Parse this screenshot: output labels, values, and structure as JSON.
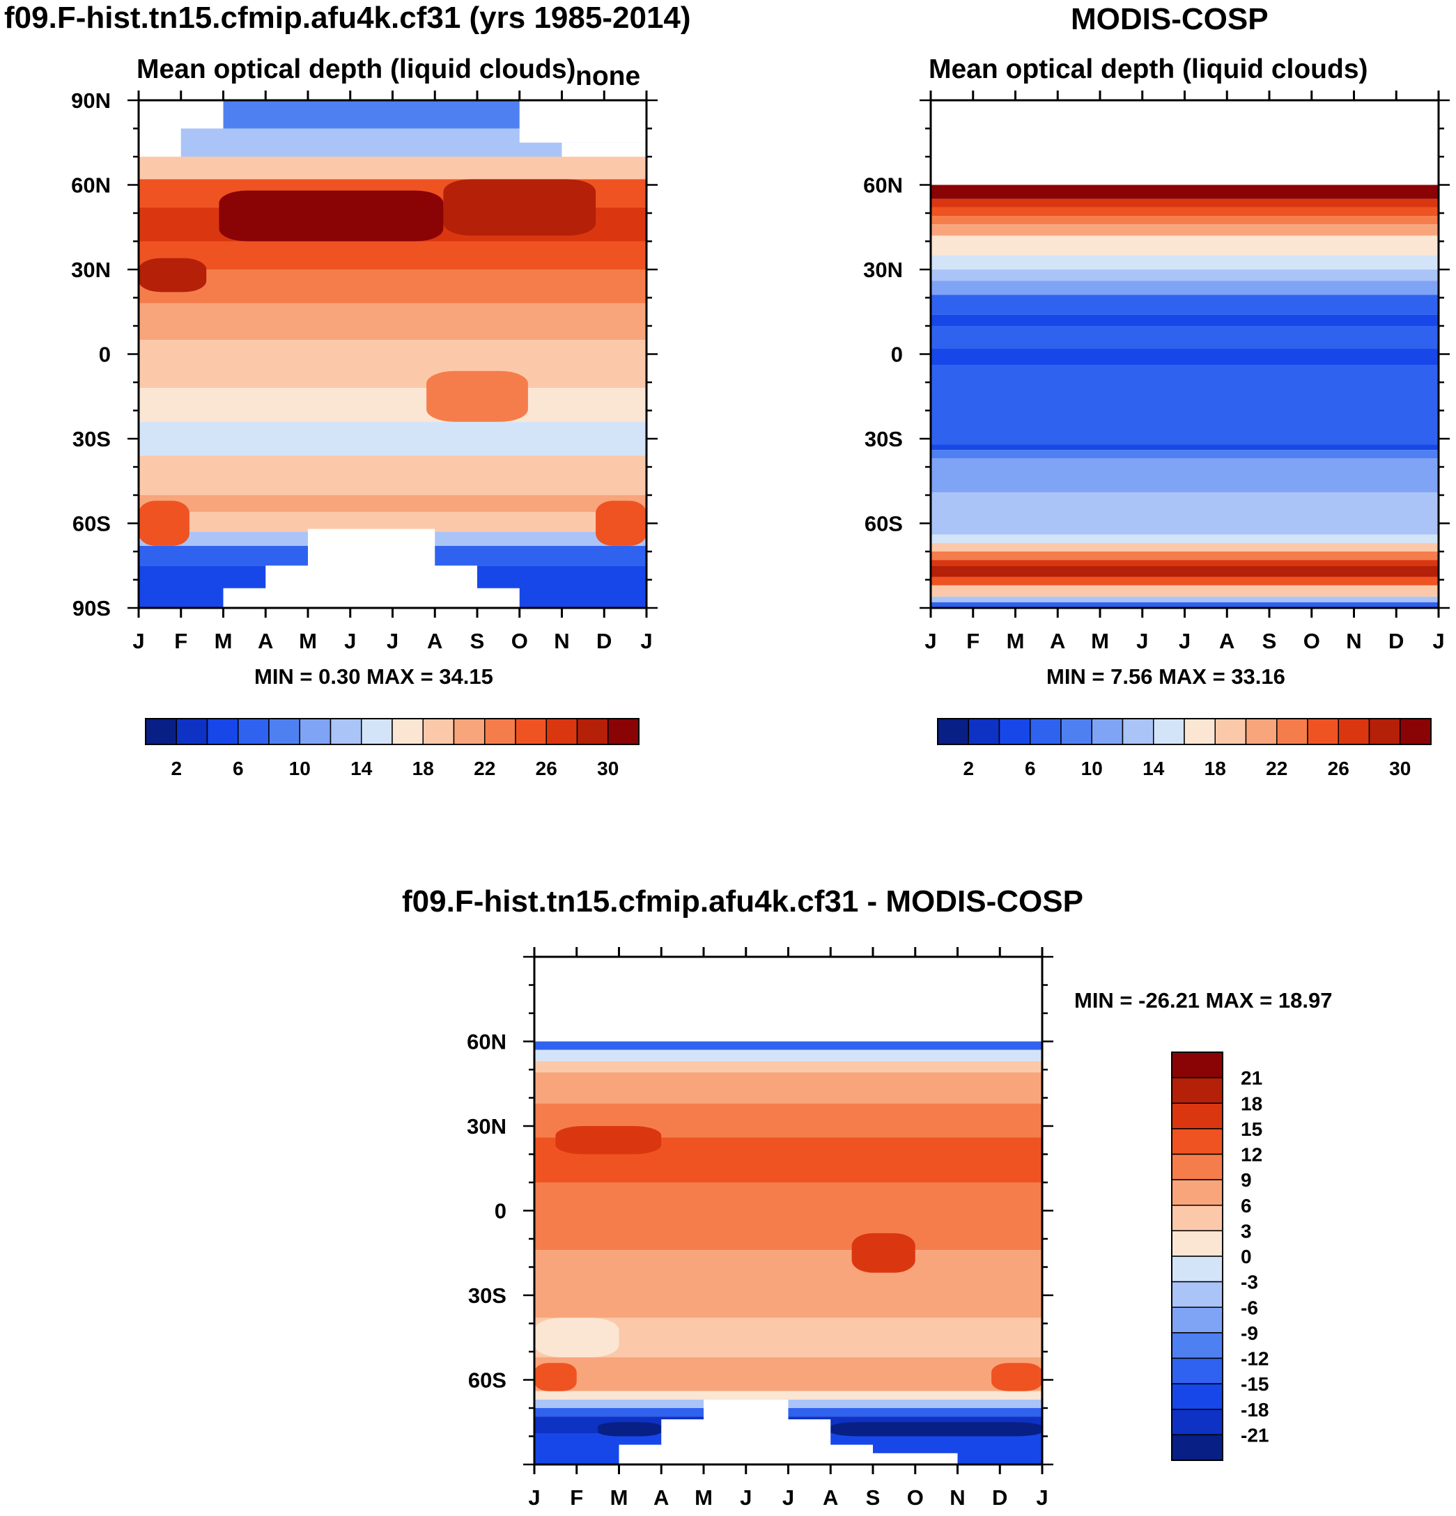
{
  "page_title_left": "f09.F-hist.tn15.cfmip.afu4k.cf31 (yrs 1985-2014)",
  "page_title_right": "MODIS-COSP",
  "diff_title": "f09.F-hist.tn15.cfmip.afu4k.cf31 - MODIS-COSP",
  "chart_data": [
    {
      "id": "model",
      "type": "heatmap",
      "title": "Mean optical depth (liquid clouds)",
      "corner_label": "none",
      "months": [
        "J",
        "F",
        "M",
        "A",
        "M",
        "J",
        "J",
        "A",
        "S",
        "O",
        "N",
        "D",
        "J"
      ],
      "yticks": [
        "90N",
        "60N",
        "30N",
        "0",
        "30S",
        "60S",
        "90S"
      ],
      "ylim": [
        -90,
        90
      ],
      "stats": "MIN =   0.30 MAX =  34.15",
      "colorbar_labels": [
        "2",
        "6",
        "10",
        "14",
        "18",
        "22",
        "26",
        "30"
      ],
      "colorbar_colors": [
        "#081f86",
        "#0d32c4",
        "#1747e8",
        "#2f62ef",
        "#4f80f2",
        "#7fa3f5",
        "#abc4f7",
        "#d3e4f9",
        "#fbe6d4",
        "#fbc9aa",
        "#f8a57c",
        "#f57d4c",
        "#ef5322",
        "#da3710",
        "#b42008",
        "#8a0405"
      ],
      "bands": [
        {
          "lat_top": 90,
          "lat_bottom": 80,
          "color": "#4f80f2"
        },
        {
          "lat_top": 80,
          "lat_bottom": 70,
          "color": "#abc4f7"
        },
        {
          "lat_top": 70,
          "lat_bottom": 62,
          "color": "#fbc9aa"
        },
        {
          "lat_top": 62,
          "lat_bottom": 52,
          "color": "#ef5322"
        },
        {
          "lat_top": 52,
          "lat_bottom": 40,
          "color": "#da3710"
        },
        {
          "lat_top": 40,
          "lat_bottom": 30,
          "color": "#ef5322"
        },
        {
          "lat_top": 30,
          "lat_bottom": 18,
          "color": "#f57d4c"
        },
        {
          "lat_top": 18,
          "lat_bottom": 5,
          "color": "#f8a57c"
        },
        {
          "lat_top": 5,
          "lat_bottom": -12,
          "color": "#fbc9aa"
        },
        {
          "lat_top": -12,
          "lat_bottom": -24,
          "color": "#fbe6d4"
        },
        {
          "lat_top": -24,
          "lat_bottom": -36,
          "color": "#d3e4f9"
        },
        {
          "lat_top": -36,
          "lat_bottom": -50,
          "color": "#fbc9aa"
        },
        {
          "lat_top": -50,
          "lat_bottom": -56,
          "color": "#f8a57c"
        },
        {
          "lat_top": -56,
          "lat_bottom": -63,
          "color": "#fbc9aa"
        },
        {
          "lat_top": -63,
          "lat_bottom": -68,
          "color": "#abc4f7"
        },
        {
          "lat_top": -68,
          "lat_bottom": -75,
          "color": "#2f62ef"
        },
        {
          "lat_top": -75,
          "lat_bottom": -90,
          "color": "#1747e8"
        }
      ],
      "patches": [
        {
          "months": [
            1.9,
            7.2
          ],
          "lat": [
            58,
            40
          ],
          "color": "#8a0405"
        },
        {
          "months": [
            7.2,
            10.8
          ],
          "lat": [
            62,
            42
          ],
          "color": "#b42008"
        },
        {
          "months": [
            0.0,
            1.6
          ],
          "lat": [
            34,
            22
          ],
          "color": "#b42008"
        },
        {
          "months": [
            6.8,
            9.2
          ],
          "lat": [
            -6,
            -24
          ],
          "color": "#f57d4c"
        },
        {
          "months": [
            0.0,
            1.2
          ],
          "lat": [
            -52,
            -68
          ],
          "color": "#ef5322"
        },
        {
          "months": [
            10.8,
            12.0
          ],
          "lat": [
            -52,
            -68
          ],
          "color": "#ef5322"
        },
        {
          "months": [
            4.0,
            7.0
          ],
          "lat": [
            -62,
            -90
          ],
          "color": "#ffffff"
        },
        {
          "months": [
            3.0,
            8.0
          ],
          "lat": [
            -75,
            -90
          ],
          "color": "#ffffff"
        },
        {
          "months": [
            2.0,
            9.0
          ],
          "lat": [
            -83,
            -90
          ],
          "color": "#ffffff"
        },
        {
          "months": [
            0.0,
            2.0
          ],
          "lat": [
            90,
            80
          ],
          "color": "#ffffff"
        },
        {
          "months": [
            9.0,
            12.0
          ],
          "lat": [
            90,
            75
          ],
          "color": "#ffffff"
        },
        {
          "months": [
            0.0,
            1.0
          ],
          "lat": [
            80,
            70
          ],
          "color": "#ffffff"
        },
        {
          "months": [
            10.0,
            12.0
          ],
          "lat": [
            75,
            70
          ],
          "color": "#ffffff"
        }
      ]
    },
    {
      "id": "obs",
      "type": "heatmap",
      "title": "Mean optical depth (liquid clouds)",
      "months": [
        "J",
        "F",
        "M",
        "A",
        "M",
        "J",
        "J",
        "A",
        "S",
        "O",
        "N",
        "D",
        "J"
      ],
      "yticks": [
        "60N",
        "30N",
        "0",
        "30S",
        "60S"
      ],
      "ylim": [
        -90,
        90
      ],
      "stats": "MIN =   7.56 MAX =  33.16",
      "colorbar_labels": [
        "2",
        "6",
        "10",
        "14",
        "18",
        "22",
        "26",
        "30"
      ],
      "colorbar_colors": [
        "#081f86",
        "#0d32c4",
        "#1747e8",
        "#2f62ef",
        "#4f80f2",
        "#7fa3f5",
        "#abc4f7",
        "#d3e4f9",
        "#fbe6d4",
        "#fbc9aa",
        "#f8a57c",
        "#f57d4c",
        "#ef5322",
        "#da3710",
        "#b42008",
        "#8a0405"
      ],
      "bands": [
        {
          "lat_top": 90,
          "lat_bottom": 60,
          "color": "#ffffff"
        },
        {
          "lat_top": 60,
          "lat_bottom": 55,
          "color": "#8a0405"
        },
        {
          "lat_top": 55,
          "lat_bottom": 52,
          "color": "#da3710"
        },
        {
          "lat_top": 52,
          "lat_bottom": 49,
          "color": "#ef5322"
        },
        {
          "lat_top": 49,
          "lat_bottom": 46,
          "color": "#f57d4c"
        },
        {
          "lat_top": 46,
          "lat_bottom": 42,
          "color": "#f8a57c"
        },
        {
          "lat_top": 42,
          "lat_bottom": 35,
          "color": "#fbe6d4"
        },
        {
          "lat_top": 35,
          "lat_bottom": 30,
          "color": "#d3e4f9"
        },
        {
          "lat_top": 30,
          "lat_bottom": 26,
          "color": "#abc4f7"
        },
        {
          "lat_top": 26,
          "lat_bottom": 21,
          "color": "#7fa3f5"
        },
        {
          "lat_top": 21,
          "lat_bottom": 14,
          "color": "#2f62ef"
        },
        {
          "lat_top": 14,
          "lat_bottom": 10,
          "color": "#1747e8"
        },
        {
          "lat_top": 10,
          "lat_bottom": 2,
          "color": "#2f62ef"
        },
        {
          "lat_top": 2,
          "lat_bottom": -4,
          "color": "#1747e8"
        },
        {
          "lat_top": -4,
          "lat_bottom": -32,
          "color": "#2f62ef"
        },
        {
          "lat_top": -32,
          "lat_bottom": -34,
          "color": "#1747e8"
        },
        {
          "lat_top": -34,
          "lat_bottom": -37,
          "color": "#4f80f2"
        },
        {
          "lat_top": -37,
          "lat_bottom": -49,
          "color": "#7fa3f5"
        },
        {
          "lat_top": -49,
          "lat_bottom": -64,
          "color": "#abc4f7"
        },
        {
          "lat_top": -64,
          "lat_bottom": -67,
          "color": "#d3e4f9"
        },
        {
          "lat_top": -67,
          "lat_bottom": -70,
          "color": "#fbc9aa"
        },
        {
          "lat_top": -70,
          "lat_bottom": -73,
          "color": "#f57d4c"
        },
        {
          "lat_top": -73,
          "lat_bottom": -75,
          "color": "#da3710"
        },
        {
          "lat_top": -75,
          "lat_bottom": -79,
          "color": "#b42008"
        },
        {
          "lat_top": -79,
          "lat_bottom": -82,
          "color": "#ef5322"
        },
        {
          "lat_top": -82,
          "lat_bottom": -86,
          "color": "#fbc9aa"
        },
        {
          "lat_top": -86,
          "lat_bottom": -88,
          "color": "#abc4f7"
        },
        {
          "lat_top": -88,
          "lat_bottom": -90,
          "color": "#2f62ef"
        }
      ],
      "patches": []
    },
    {
      "id": "diff",
      "type": "heatmap",
      "months": [
        "J",
        "F",
        "M",
        "A",
        "M",
        "J",
        "J",
        "A",
        "S",
        "O",
        "N",
        "D",
        "J"
      ],
      "yticks": [
        "60N",
        "30N",
        "0",
        "30S",
        "60S"
      ],
      "ylim": [
        -90,
        90
      ],
      "stats": "MIN = -26.21 MAX =  18.97",
      "colorbar_labels": [
        "21",
        "18",
        "15",
        "12",
        "9",
        "6",
        "3",
        "0",
        "-3",
        "-6",
        "-9",
        "-12",
        "-15",
        "-18",
        "-21"
      ],
      "colorbar_colors": [
        "#8a0405",
        "#b42008",
        "#da3710",
        "#ef5322",
        "#f57d4c",
        "#f8a57c",
        "#fbc9aa",
        "#fbe6d4",
        "#d3e4f9",
        "#abc4f7",
        "#7fa3f5",
        "#4f80f2",
        "#2f62ef",
        "#1747e8",
        "#0d32c4",
        "#081f86"
      ],
      "bands": [
        {
          "lat_top": 90,
          "lat_bottom": 60,
          "color": "#ffffff"
        },
        {
          "lat_top": 60,
          "lat_bottom": 57,
          "color": "#2f62ef"
        },
        {
          "lat_top": 57,
          "lat_bottom": 53,
          "color": "#d3e4f9"
        },
        {
          "lat_top": 53,
          "lat_bottom": 49,
          "color": "#fbc9aa"
        },
        {
          "lat_top": 49,
          "lat_bottom": 38,
          "color": "#f8a57c"
        },
        {
          "lat_top": 38,
          "lat_bottom": 26,
          "color": "#f57d4c"
        },
        {
          "lat_top": 26,
          "lat_bottom": 10,
          "color": "#ef5322"
        },
        {
          "lat_top": 10,
          "lat_bottom": -14,
          "color": "#f57d4c"
        },
        {
          "lat_top": -14,
          "lat_bottom": -38,
          "color": "#f8a57c"
        },
        {
          "lat_top": -38,
          "lat_bottom": -52,
          "color": "#fbc9aa"
        },
        {
          "lat_top": -52,
          "lat_bottom": -64,
          "color": "#f8a57c"
        },
        {
          "lat_top": -64,
          "lat_bottom": -67,
          "color": "#fbe6d4"
        },
        {
          "lat_top": -67,
          "lat_bottom": -70,
          "color": "#abc4f7"
        },
        {
          "lat_top": -70,
          "lat_bottom": -73,
          "color": "#2f62ef"
        },
        {
          "lat_top": -73,
          "lat_bottom": -79,
          "color": "#0d32c4"
        },
        {
          "lat_top": -79,
          "lat_bottom": -90,
          "color": "#1747e8"
        }
      ],
      "patches": [
        {
          "months": [
            0.5,
            3.0
          ],
          "lat": [
            30,
            20
          ],
          "color": "#da3710"
        },
        {
          "months": [
            7.5,
            9.0
          ],
          "lat": [
            -8,
            -22
          ],
          "color": "#da3710"
        },
        {
          "months": [
            0.0,
            2.0
          ],
          "lat": [
            -38,
            -52
          ],
          "color": "#fbe6d4"
        },
        {
          "months": [
            0.0,
            1.0
          ],
          "lat": [
            -54,
            -64
          ],
          "color": "#ef5322"
        },
        {
          "months": [
            10.8,
            12.0
          ],
          "lat": [
            -54,
            -64
          ],
          "color": "#ef5322"
        },
        {
          "months": [
            1.5,
            3.0
          ],
          "lat": [
            -75,
            -80
          ],
          "color": "#081f86"
        },
        {
          "months": [
            7.0,
            12.0
          ],
          "lat": [
            -75,
            -80
          ],
          "color": "#081f86"
        },
        {
          "months": [
            4.0,
            6.0
          ],
          "lat": [
            -67,
            -90
          ],
          "color": "#ffffff"
        },
        {
          "months": [
            3.0,
            7.0
          ],
          "lat": [
            -74,
            -90
          ],
          "color": "#ffffff"
        },
        {
          "months": [
            2.0,
            8.0
          ],
          "lat": [
            -83,
            -90
          ],
          "color": "#ffffff"
        },
        {
          "months": [
            8.0,
            10.0
          ],
          "lat": [
            -86,
            -90
          ],
          "color": "#ffffff"
        }
      ]
    }
  ]
}
